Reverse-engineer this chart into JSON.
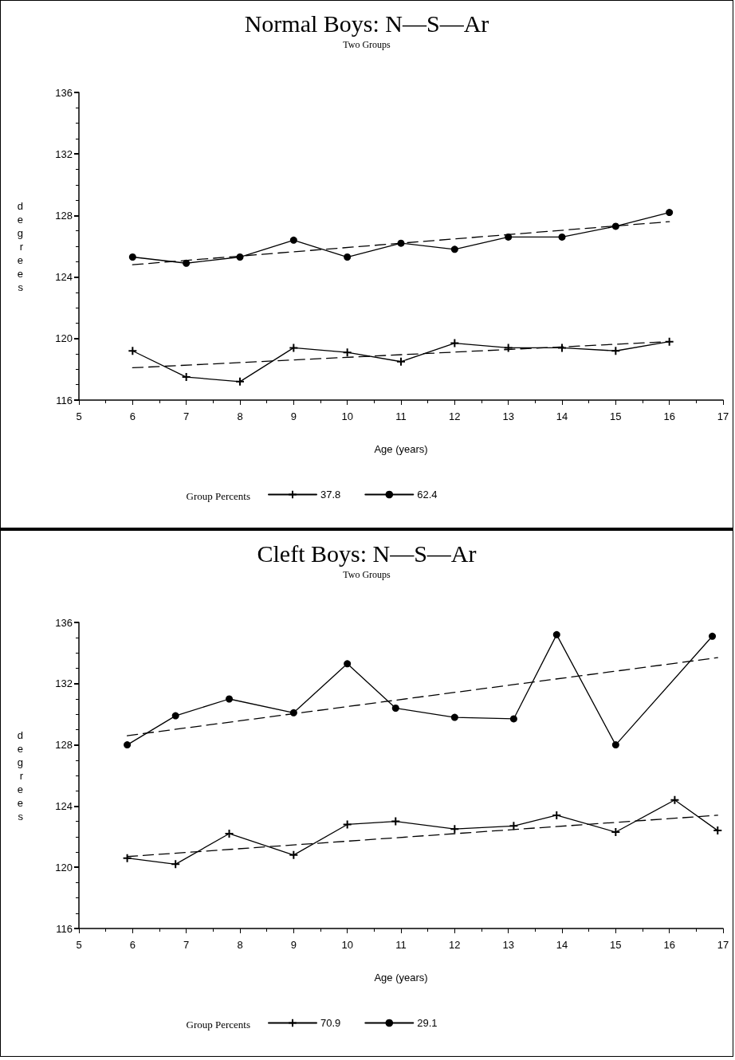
{
  "chart_data": [
    {
      "type": "line",
      "title": "Normal Boys: N—S—Ar",
      "subtitle": "Two Groups",
      "xlabel": "Age (years)",
      "ylabel": "degrees",
      "legend_title": "Group Percents",
      "xlim": [
        5,
        17
      ],
      "xticks": [
        5,
        6,
        7,
        8,
        9,
        10,
        11,
        12,
        13,
        14,
        15,
        16,
        17
      ],
      "ylim": [
        116,
        136
      ],
      "yticks": [
        116,
        120,
        124,
        128,
        132,
        136
      ],
      "grid": false,
      "legend": "bottom",
      "series": [
        {
          "name": "37.8",
          "color": "#000000",
          "marker": "cross",
          "line_style": "solid",
          "x": [
            6,
            7,
            8,
            9,
            10,
            11,
            12,
            13,
            14,
            15,
            16
          ],
          "values": [
            119.2,
            117.5,
            117.2,
            119.4,
            119.1,
            118.5,
            119.7,
            119.4,
            119.4,
            119.2,
            119.8
          ]
        },
        {
          "color": "#000000",
          "marker": "none",
          "line_style": "dashed",
          "x": [
            6,
            16
          ],
          "values": [
            118.1,
            119.8
          ]
        },
        {
          "name": "62.4",
          "color": "#000000",
          "marker": "circle",
          "line_style": "solid",
          "x": [
            6,
            7,
            8,
            9,
            10,
            11,
            12,
            13,
            14,
            15,
            16
          ],
          "values": [
            125.3,
            124.9,
            125.3,
            126.4,
            125.3,
            126.2,
            125.8,
            126.6,
            126.6,
            127.3,
            128.2
          ]
        },
        {
          "color": "#000000",
          "marker": "none",
          "line_style": "dashed",
          "x": [
            6,
            16
          ],
          "values": [
            124.8,
            127.6
          ]
        }
      ]
    },
    {
      "type": "line",
      "title": "Cleft Boys: N—S—Ar",
      "subtitle": "Two Groups",
      "xlabel": "Age (years)",
      "ylabel": "degrees",
      "legend_title": "Group Percents",
      "xlim": [
        5,
        17
      ],
      "xticks": [
        5,
        6,
        7,
        8,
        9,
        10,
        11,
        12,
        13,
        14,
        15,
        16,
        17
      ],
      "ylim": [
        116,
        136
      ],
      "yticks": [
        116,
        120,
        124,
        128,
        132,
        136
      ],
      "grid": false,
      "legend": "bottom",
      "series": [
        {
          "name": "70.9",
          "color": "#000000",
          "marker": "cross",
          "line_style": "solid",
          "x": [
            5.9,
            6.8,
            7.8,
            9.0,
            10.0,
            10.9,
            12.0,
            13.1,
            13.9,
            15.0,
            16.1,
            16.9
          ],
          "values": [
            120.6,
            120.2,
            122.2,
            120.8,
            122.8,
            123.0,
            122.5,
            122.7,
            123.4,
            122.3,
            124.4,
            122.4
          ]
        },
        {
          "color": "#000000",
          "marker": "none",
          "line_style": "dashed",
          "x": [
            5.9,
            16.9
          ],
          "values": [
            120.7,
            123.4
          ]
        },
        {
          "name": "29.1",
          "color": "#000000",
          "marker": "circle",
          "line_style": "solid",
          "x": [
            5.9,
            6.8,
            7.8,
            9.0,
            10.0,
            10.9,
            12.0,
            13.1,
            13.9,
            15.0,
            16.8
          ],
          "values": [
            128.0,
            129.9,
            131.0,
            130.1,
            133.3,
            130.4,
            129.8,
            129.7,
            135.2,
            128.0,
            135.1
          ]
        },
        {
          "color": "#000000",
          "marker": "none",
          "line_style": "dashed",
          "x": [
            5.9,
            16.9
          ],
          "values": [
            128.6,
            133.7
          ]
        }
      ]
    }
  ]
}
